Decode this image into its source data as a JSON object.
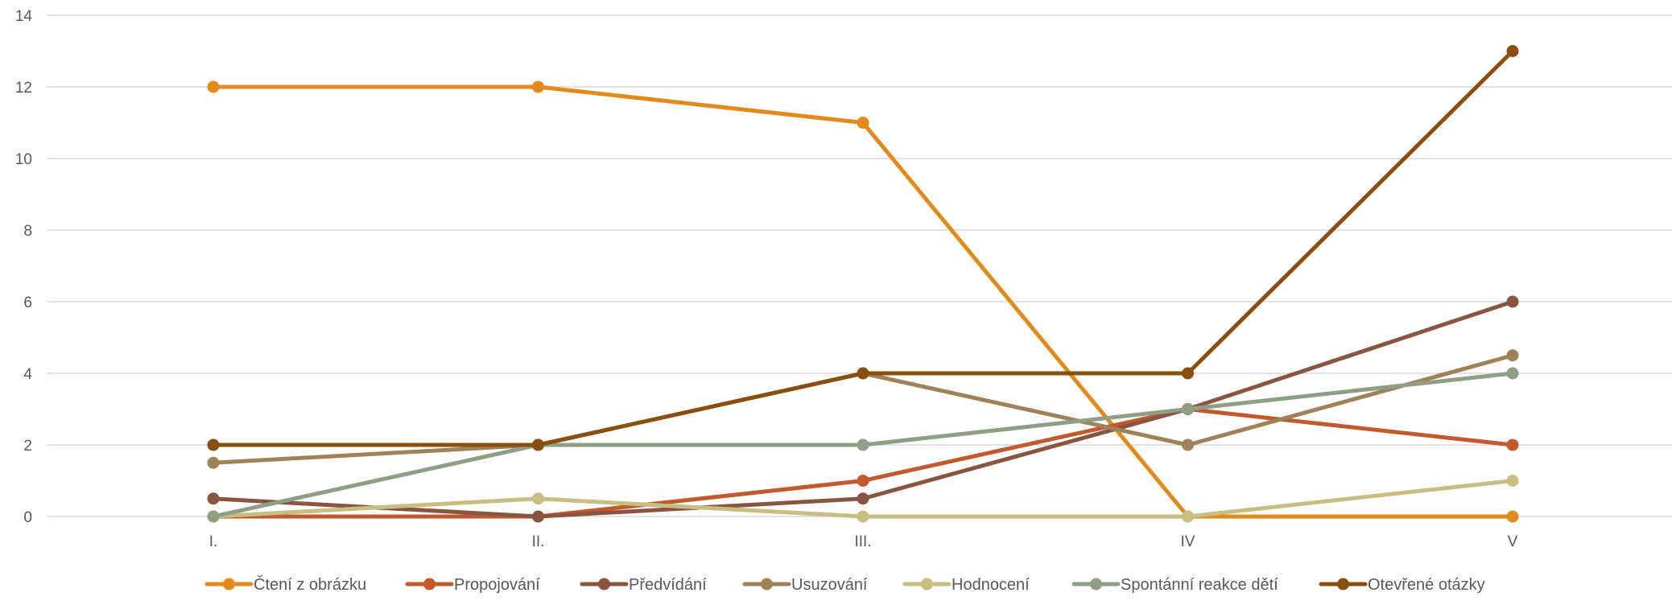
{
  "chart_data": {
    "type": "line",
    "title": "",
    "xlabel": "",
    "ylabel": "",
    "categories": [
      "I.",
      "II.",
      "III.",
      "IV",
      "V"
    ],
    "ylim": [
      0,
      14
    ],
    "yticks": [
      0,
      2,
      4,
      6,
      8,
      10,
      12,
      14
    ],
    "grid": true,
    "legend_position": "bottom",
    "series": [
      {
        "name": "Čtení z obrázku",
        "color": "#E28A1C",
        "values": [
          12,
          12,
          11,
          0,
          0
        ]
      },
      {
        "name": "Propojování",
        "color": "#C25A2E",
        "values": [
          0,
          0,
          1,
          3,
          2
        ]
      },
      {
        "name": "Předvídání",
        "color": "#8A5540",
        "values": [
          0.5,
          0,
          0.5,
          3,
          6
        ]
      },
      {
        "name": "Usuzování",
        "color": "#9E8258",
        "values": [
          1.5,
          2,
          4,
          2,
          4.5
        ]
      },
      {
        "name": "Hodnocení",
        "color": "#C8BE82",
        "values": [
          0,
          0.5,
          0,
          0,
          1
        ]
      },
      {
        "name": "Spontánní reakce dětí",
        "color": "#8F9E84",
        "values": [
          0,
          2,
          2,
          3,
          4
        ]
      },
      {
        "name": "Otevřené otázky",
        "color": "#8A4F0E",
        "values": [
          2,
          2,
          4,
          4,
          13
        ]
      }
    ]
  }
}
